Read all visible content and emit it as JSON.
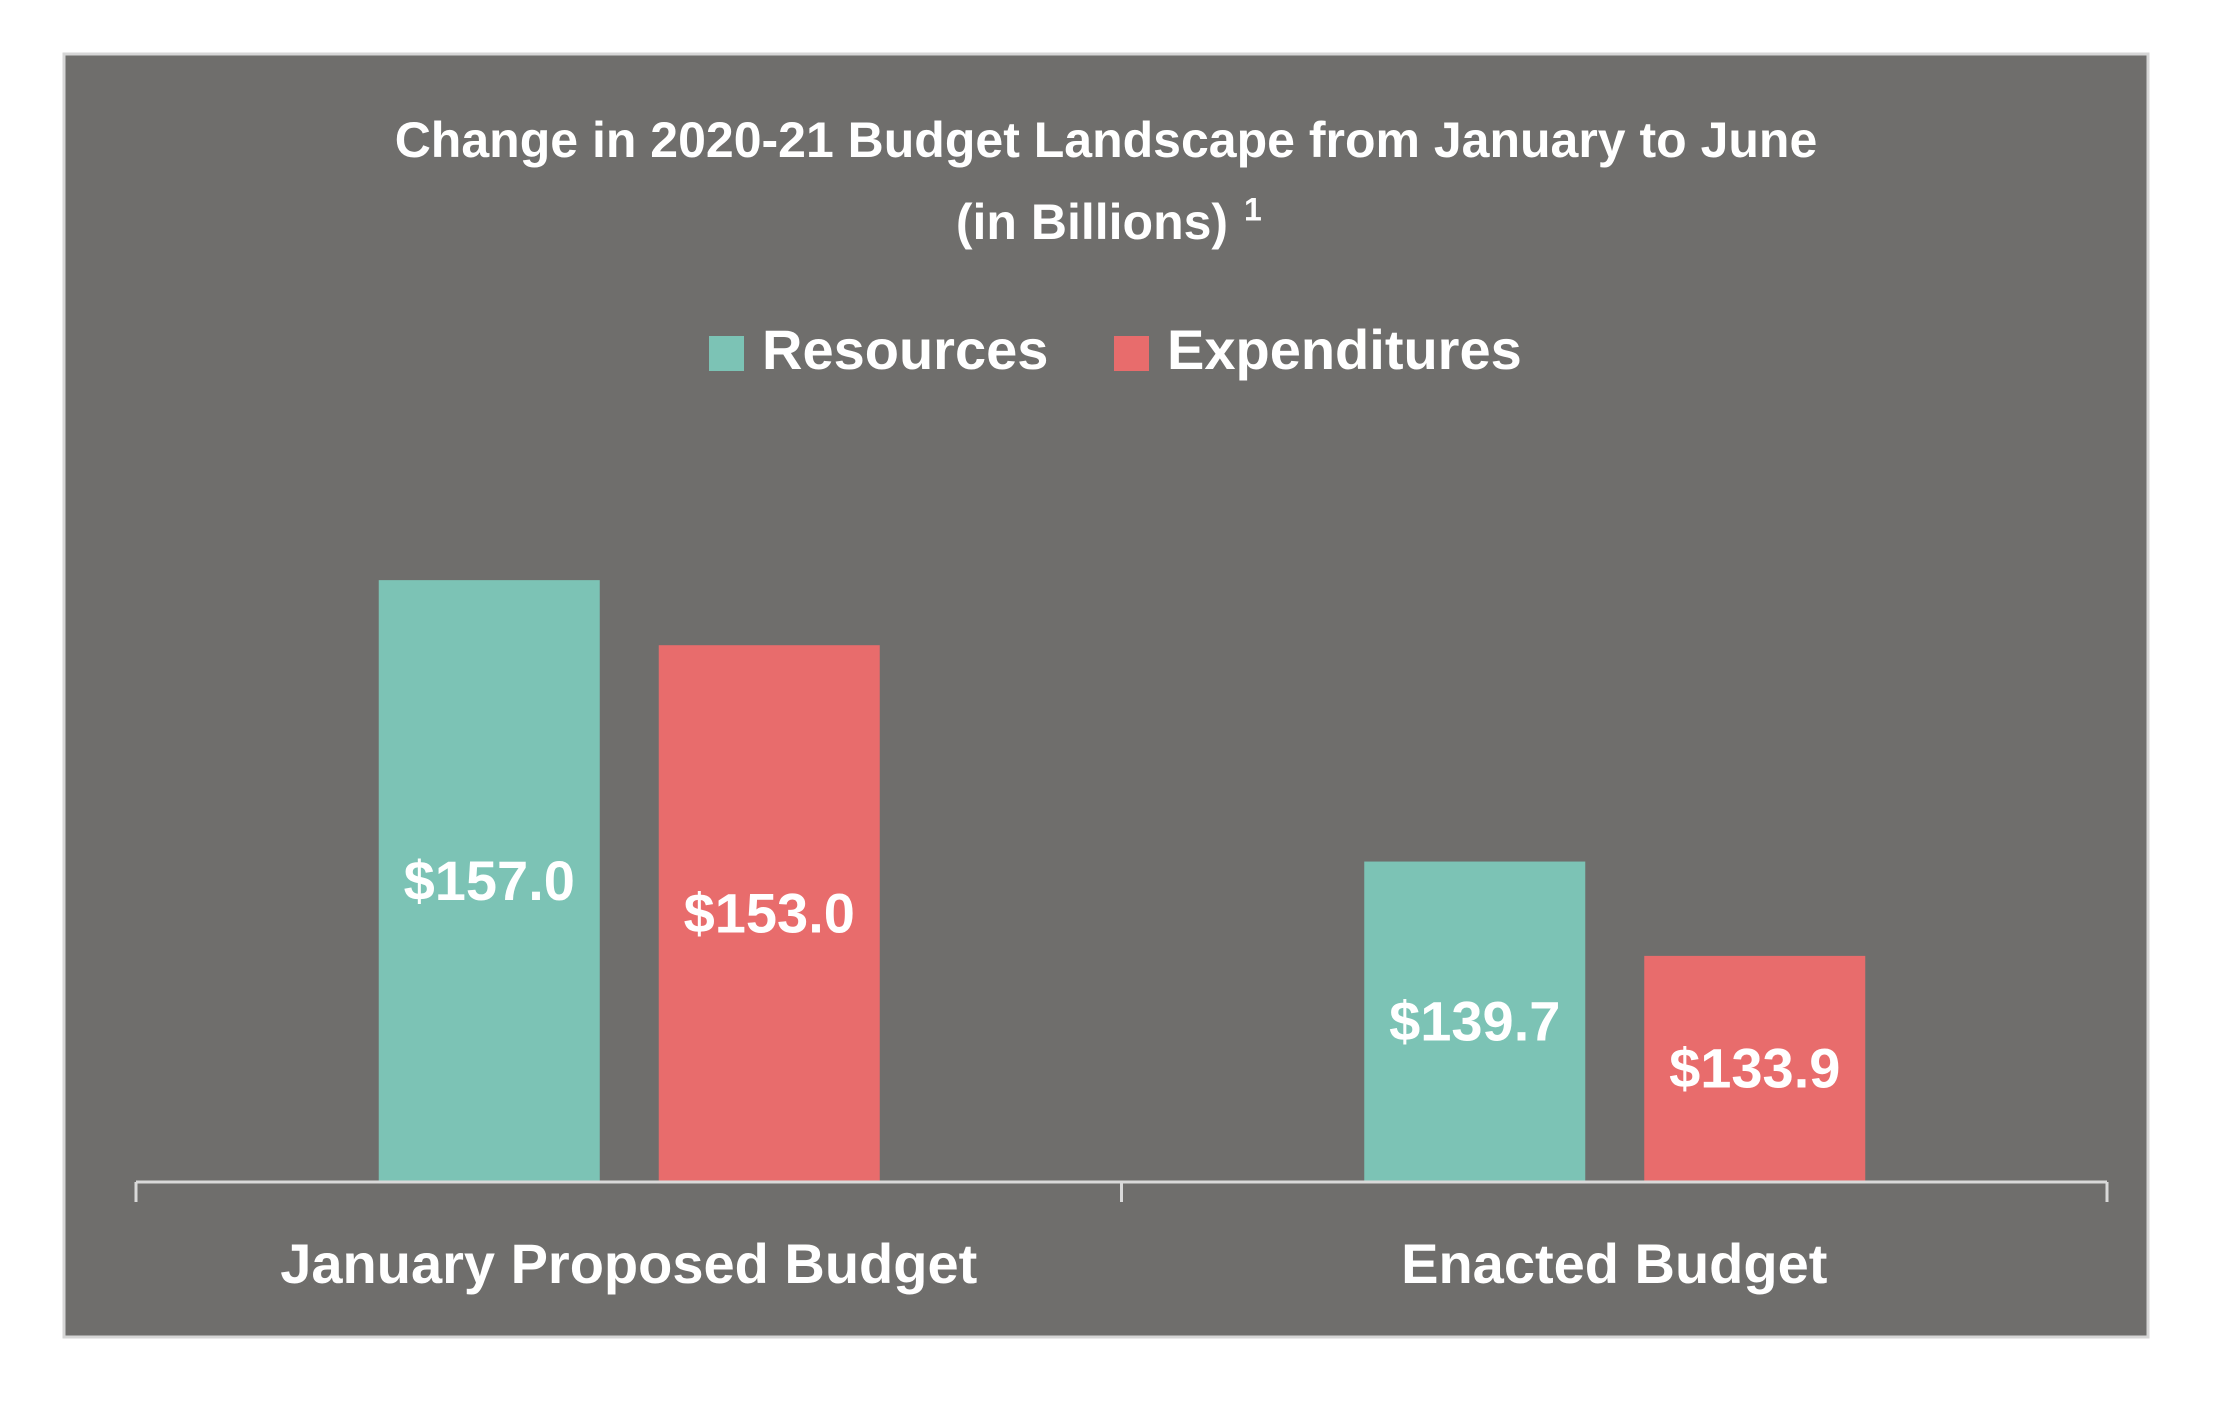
{
  "chart_data": {
    "type": "bar",
    "title": "Change in 2020-21 Budget Landscape from January to June",
    "subtitle": "(in Billions)",
    "subtitle_footnote": "1",
    "categories": [
      "January Proposed Budget",
      "Enacted Budget"
    ],
    "series": [
      {
        "name": "Resources",
        "color": "#7cc3b5",
        "values": [
          157.0,
          139.7
        ],
        "value_labels": [
          "$157.0",
          "$139.7"
        ]
      },
      {
        "name": "Expenditures",
        "color": "#e86c6c",
        "values": [
          153.0,
          133.9
        ],
        "value_labels": [
          "$153.0",
          "$133.9"
        ]
      }
    ],
    "ylim": [
      120,
      165
    ],
    "grid": false,
    "legend": "top"
  }
}
